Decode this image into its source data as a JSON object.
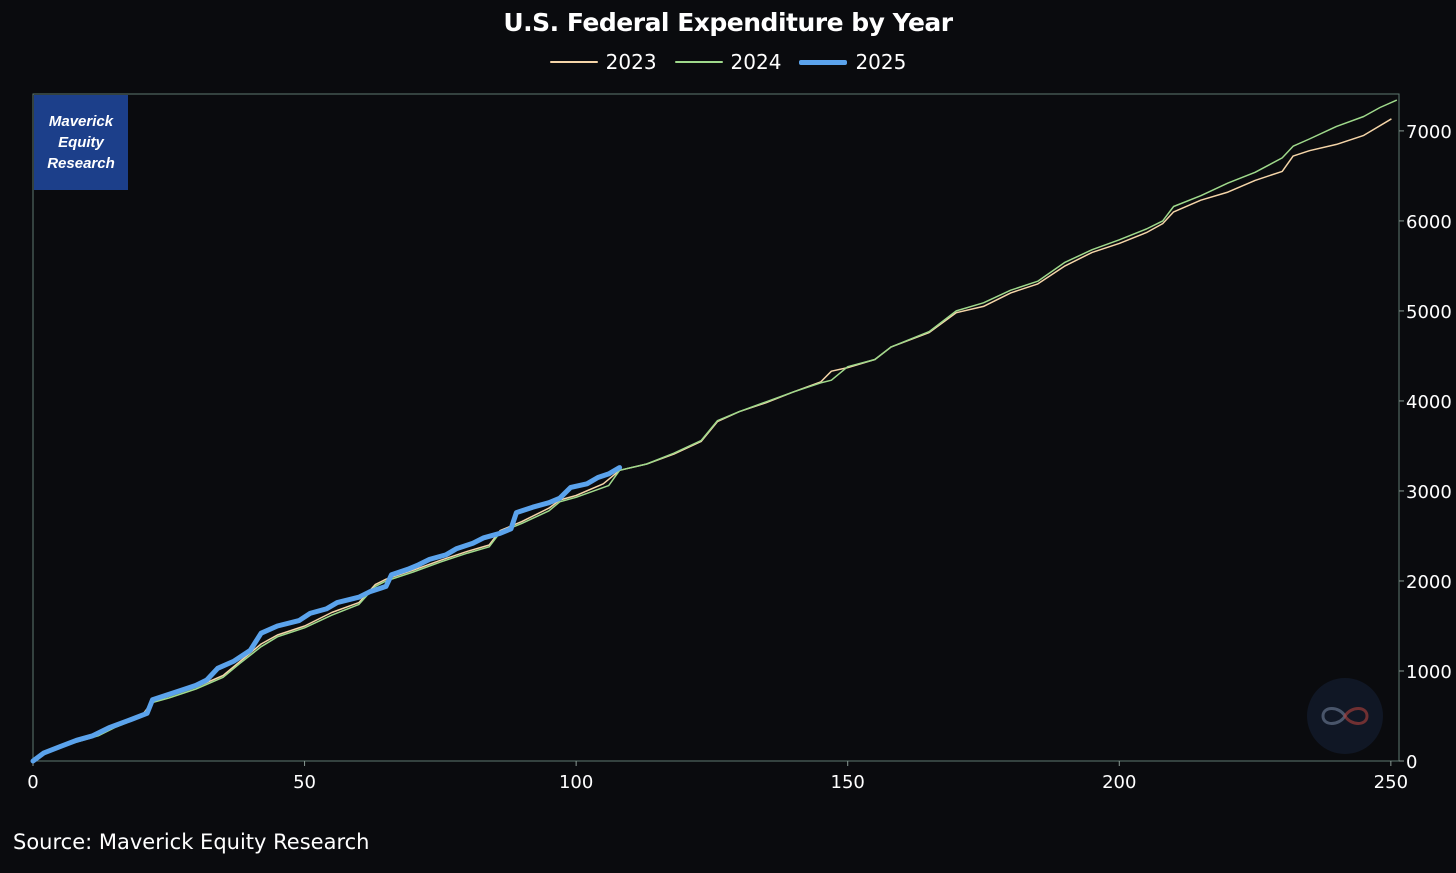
{
  "logo_text": "Maverick Equity Research",
  "source": "Source: Maverick Equity Research",
  "chart_data": {
    "type": "line",
    "title": "U.S. Federal Expenditure by Year",
    "xlabel": "",
    "ylabel": "",
    "xlim": [
      0,
      251
    ],
    "ylim": [
      0,
      7400
    ],
    "y_axis_position": "right",
    "x_ticks": [
      0,
      50,
      100,
      150,
      200,
      250
    ],
    "y_ticks": [
      0,
      1000,
      2000,
      3000,
      4000,
      5000,
      6000,
      7000
    ],
    "grid": false,
    "legend_position": "top-center",
    "series": [
      {
        "name": "2023",
        "color": "#f5d5a8",
        "points": [
          [
            0,
            0
          ],
          [
            2,
            90
          ],
          [
            5,
            160
          ],
          [
            8,
            220
          ],
          [
            12,
            290
          ],
          [
            15,
            380
          ],
          [
            20,
            500
          ],
          [
            22,
            660
          ],
          [
            25,
            720
          ],
          [
            30,
            820
          ],
          [
            35,
            950
          ],
          [
            38,
            1100
          ],
          [
            42,
            1300
          ],
          [
            45,
            1400
          ],
          [
            50,
            1500
          ],
          [
            55,
            1650
          ],
          [
            60,
            1760
          ],
          [
            63,
            1960
          ],
          [
            65,
            2020
          ],
          [
            70,
            2120
          ],
          [
            75,
            2230
          ],
          [
            80,
            2330
          ],
          [
            84,
            2400
          ],
          [
            86,
            2560
          ],
          [
            90,
            2660
          ],
          [
            95,
            2810
          ],
          [
            97,
            2900
          ],
          [
            100,
            2950
          ],
          [
            105,
            3080
          ],
          [
            108,
            3230
          ],
          [
            113,
            3300
          ],
          [
            118,
            3410
          ],
          [
            123,
            3550
          ],
          [
            126,
            3770
          ],
          [
            130,
            3880
          ],
          [
            135,
            3980
          ],
          [
            140,
            4100
          ],
          [
            145,
            4210
          ],
          [
            147,
            4330
          ],
          [
            150,
            4370
          ],
          [
            155,
            4460
          ],
          [
            158,
            4600
          ],
          [
            165,
            4760
          ],
          [
            170,
            4980
          ],
          [
            175,
            5050
          ],
          [
            180,
            5200
          ],
          [
            185,
            5300
          ],
          [
            190,
            5500
          ],
          [
            195,
            5650
          ],
          [
            200,
            5750
          ],
          [
            205,
            5870
          ],
          [
            208,
            5970
          ],
          [
            210,
            6100
          ],
          [
            215,
            6230
          ],
          [
            220,
            6320
          ],
          [
            225,
            6450
          ],
          [
            230,
            6550
          ],
          [
            232,
            6720
          ],
          [
            235,
            6780
          ],
          [
            240,
            6850
          ],
          [
            245,
            6950
          ],
          [
            250,
            7130
          ]
        ]
      },
      {
        "name": "2024",
        "color": "#9fd98b",
        "points": [
          [
            0,
            0
          ],
          [
            2,
            85
          ],
          [
            5,
            150
          ],
          [
            8,
            210
          ],
          [
            12,
            280
          ],
          [
            15,
            370
          ],
          [
            20,
            490
          ],
          [
            22,
            650
          ],
          [
            25,
            700
          ],
          [
            30,
            800
          ],
          [
            35,
            930
          ],
          [
            38,
            1080
          ],
          [
            42,
            1270
          ],
          [
            45,
            1380
          ],
          [
            50,
            1480
          ],
          [
            55,
            1620
          ],
          [
            60,
            1740
          ],
          [
            63,
            1940
          ],
          [
            65,
            2000
          ],
          [
            70,
            2100
          ],
          [
            75,
            2210
          ],
          [
            80,
            2310
          ],
          [
            84,
            2380
          ],
          [
            86,
            2540
          ],
          [
            90,
            2640
          ],
          [
            95,
            2780
          ],
          [
            97,
            2880
          ],
          [
            100,
            2930
          ],
          [
            106,
            3060
          ],
          [
            108,
            3230
          ],
          [
            113,
            3300
          ],
          [
            118,
            3420
          ],
          [
            123,
            3560
          ],
          [
            126,
            3780
          ],
          [
            130,
            3880
          ],
          [
            135,
            3990
          ],
          [
            140,
            4100
          ],
          [
            145,
            4200
          ],
          [
            147,
            4230
          ],
          [
            150,
            4380
          ],
          [
            155,
            4460
          ],
          [
            158,
            4600
          ],
          [
            165,
            4770
          ],
          [
            170,
            5000
          ],
          [
            175,
            5090
          ],
          [
            180,
            5230
          ],
          [
            185,
            5330
          ],
          [
            190,
            5540
          ],
          [
            195,
            5680
          ],
          [
            200,
            5790
          ],
          [
            205,
            5910
          ],
          [
            208,
            6000
          ],
          [
            210,
            6160
          ],
          [
            215,
            6280
          ],
          [
            220,
            6420
          ],
          [
            225,
            6540
          ],
          [
            230,
            6700
          ],
          [
            232,
            6830
          ],
          [
            235,
            6910
          ],
          [
            240,
            7050
          ],
          [
            245,
            7160
          ],
          [
            248,
            7260
          ],
          [
            251,
            7340
          ]
        ]
      },
      {
        "name": "2025",
        "color": "#5ba3ec",
        "points": [
          [
            0,
            0
          ],
          [
            2,
            90
          ],
          [
            5,
            160
          ],
          [
            8,
            230
          ],
          [
            11,
            280
          ],
          [
            14,
            370
          ],
          [
            18,
            460
          ],
          [
            21,
            530
          ],
          [
            22,
            680
          ],
          [
            25,
            740
          ],
          [
            28,
            800
          ],
          [
            30,
            840
          ],
          [
            32,
            900
          ],
          [
            34,
            1030
          ],
          [
            37,
            1110
          ],
          [
            40,
            1230
          ],
          [
            42,
            1420
          ],
          [
            45,
            1500
          ],
          [
            49,
            1560
          ],
          [
            51,
            1640
          ],
          [
            54,
            1690
          ],
          [
            56,
            1760
          ],
          [
            60,
            1820
          ],
          [
            62,
            1880
          ],
          [
            65,
            1940
          ],
          [
            66,
            2070
          ],
          [
            69,
            2130
          ],
          [
            71,
            2180
          ],
          [
            73,
            2240
          ],
          [
            76,
            2290
          ],
          [
            78,
            2360
          ],
          [
            81,
            2420
          ],
          [
            83,
            2480
          ],
          [
            86,
            2530
          ],
          [
            88,
            2580
          ],
          [
            89,
            2760
          ],
          [
            92,
            2820
          ],
          [
            95,
            2870
          ],
          [
            97,
            2920
          ],
          [
            99,
            3040
          ],
          [
            102,
            3080
          ],
          [
            104,
            3150
          ],
          [
            106,
            3190
          ],
          [
            108,
            3260
          ]
        ]
      }
    ]
  }
}
